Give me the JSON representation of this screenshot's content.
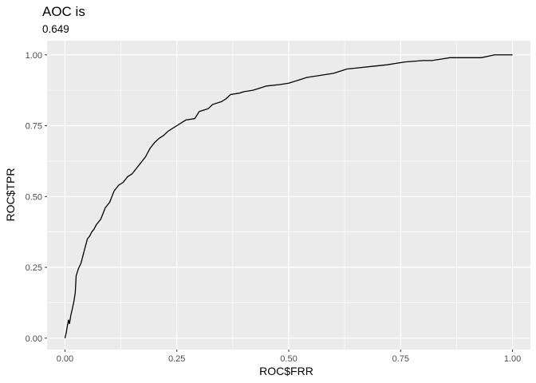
{
  "chart_data": {
    "type": "line",
    "title": "AOC is",
    "subtitle": "0.649",
    "xlabel": "ROC$FRR",
    "ylabel": "ROC$TPR",
    "xlim": [
      -0.04,
      1.04
    ],
    "ylim": [
      -0.04,
      1.05
    ],
    "x_ticks": [
      "0.00",
      "0.25",
      "0.50",
      "0.75",
      "1.00"
    ],
    "y_ticks": [
      "0.00",
      "0.25",
      "0.50",
      "0.75",
      "1.00"
    ],
    "grid": true,
    "legend": "none",
    "colors": {
      "panel": "#ebebeb",
      "grid": "#ffffff",
      "line": "#000000"
    },
    "series": [
      {
        "x": [
          0.0,
          0.003,
          0.005,
          0.008,
          0.01,
          0.013,
          0.016,
          0.02,
          0.023,
          0.025,
          0.028,
          0.03,
          0.033,
          0.036,
          0.04,
          0.045,
          0.05,
          0.055,
          0.06,
          0.065,
          0.07,
          0.08,
          0.085,
          0.09,
          0.1,
          0.105,
          0.11,
          0.12,
          0.13,
          0.14,
          0.15,
          0.155,
          0.16,
          0.17,
          0.18,
          0.19,
          0.2,
          0.21,
          0.22,
          0.23,
          0.25,
          0.27,
          0.29,
          0.3,
          0.32,
          0.33,
          0.35,
          0.36,
          0.37,
          0.39,
          0.4,
          0.42,
          0.44,
          0.45,
          0.48,
          0.5,
          0.52,
          0.54,
          0.56,
          0.58,
          0.6,
          0.63,
          0.66,
          0.69,
          0.72,
          0.74,
          0.76,
          0.8,
          0.82,
          0.84,
          0.86,
          0.9,
          0.93,
          0.96,
          0.98,
          1.0
        ],
        "y": [
          0.0,
          0.02,
          0.04,
          0.065,
          0.05,
          0.08,
          0.1,
          0.13,
          0.16,
          0.22,
          0.235,
          0.245,
          0.255,
          0.265,
          0.29,
          0.32,
          0.35,
          0.36,
          0.375,
          0.385,
          0.4,
          0.42,
          0.44,
          0.46,
          0.48,
          0.5,
          0.52,
          0.54,
          0.55,
          0.57,
          0.58,
          0.59,
          0.6,
          0.62,
          0.64,
          0.67,
          0.69,
          0.705,
          0.715,
          0.73,
          0.75,
          0.77,
          0.775,
          0.8,
          0.81,
          0.825,
          0.835,
          0.845,
          0.86,
          0.865,
          0.87,
          0.875,
          0.885,
          0.89,
          0.895,
          0.9,
          0.91,
          0.92,
          0.925,
          0.93,
          0.935,
          0.95,
          0.955,
          0.96,
          0.965,
          0.97,
          0.975,
          0.98,
          0.98,
          0.985,
          0.99,
          0.99,
          0.99,
          1.0,
          1.0,
          1.0
        ]
      }
    ]
  }
}
